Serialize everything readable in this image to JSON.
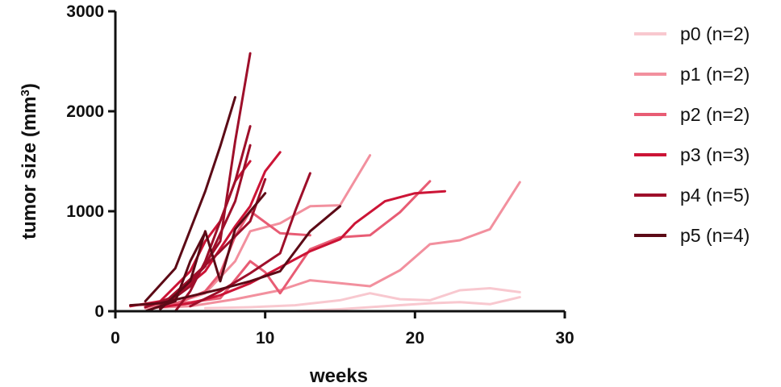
{
  "chart_data": {
    "type": "line",
    "xlabel": "weeks",
    "ylabel_main": "tumor size (mm",
    "ylabel_sup": "3",
    "ylabel_end": ")",
    "xlim": [
      0,
      30
    ],
    "ylim": [
      0,
      3000
    ],
    "xticks": [
      0,
      10,
      20,
      30
    ],
    "yticks": [
      0,
      1000,
      2000,
      3000
    ],
    "grid": false,
    "legend_position": "right",
    "groups": [
      {
        "name": "p0 (n=2)",
        "color": "#f8c8cf",
        "series": [
          {
            "x": [
              6,
              9,
              12,
              15,
              17,
              19,
              21,
              23,
              25,
              27
            ],
            "y": [
              30,
              40,
              60,
              110,
              180,
              120,
              110,
              210,
              230,
              190
            ]
          },
          {
            "x": [
              12,
              15,
              18,
              21,
              23,
              25,
              27
            ],
            "y": [
              0,
              20,
              50,
              80,
              90,
              70,
              140
            ]
          }
        ]
      },
      {
        "name": "p1 (n=2)",
        "color": "#f2909e",
        "series": [
          {
            "x": [
              2,
              4,
              6,
              8,
              9,
              11,
              13,
              15,
              17
            ],
            "y": [
              50,
              80,
              180,
              500,
              800,
              880,
              1050,
              1060,
              1560
            ]
          },
          {
            "x": [
              2,
              5,
              8,
              11,
              13,
              15,
              17,
              19,
              21,
              23,
              25,
              27
            ],
            "y": [
              30,
              50,
              120,
              210,
              310,
              280,
              250,
              410,
              670,
              710,
              820,
              1290
            ]
          }
        ]
      },
      {
        "name": "p2 (n=2)",
        "color": "#e85c74",
        "series": [
          {
            "x": [
              1,
              3,
              5,
              7,
              9,
              10,
              11,
              13,
              15,
              17,
              19,
              21
            ],
            "y": [
              60,
              70,
              90,
              130,
              500,
              390,
              180,
              620,
              740,
              760,
              990,
              1300
            ]
          },
          {
            "x": [
              2,
              4,
              6,
              7,
              8,
              9,
              11,
              13
            ],
            "y": [
              50,
              70,
              200,
              380,
              750,
              1000,
              780,
              760
            ]
          }
        ]
      },
      {
        "name": "p3 (n=3)",
        "color": "#cc1436",
        "series": [
          {
            "x": [
              2,
              4,
              6,
              8,
              9,
              10,
              11
            ],
            "y": [
              40,
              150,
              400,
              850,
              1050,
              1400,
              1590
            ]
          },
          {
            "x": [
              3,
              5,
              7,
              9,
              11,
              13,
              15,
              16,
              18,
              20,
              22
            ],
            "y": [
              40,
              80,
              160,
              280,
              440,
              600,
              720,
              880,
              1100,
              1180,
              1200
            ]
          },
          {
            "x": [
              1,
              3,
              5,
              6,
              7,
              8,
              9
            ],
            "y": [
              50,
              100,
              400,
              700,
              900,
              1300,
              1500
            ]
          }
        ]
      },
      {
        "name": "p4 (n=5)",
        "color": "#9e0f2a",
        "series": [
          {
            "x": [
              3,
              5,
              7,
              8,
              9
            ],
            "y": [
              30,
              250,
              700,
              1700,
              2580
            ]
          },
          {
            "x": [
              2,
              4,
              6,
              8,
              9
            ],
            "y": [
              40,
              150,
              450,
              1100,
              1660
            ]
          },
          {
            "x": [
              4,
              5,
              6,
              7,
              8,
              9
            ],
            "y": [
              0,
              200,
              500,
              900,
              1300,
              1850
            ]
          },
          {
            "x": [
              3,
              5,
              7,
              9,
              10
            ],
            "y": [
              50,
              320,
              600,
              900,
              1320
            ]
          },
          {
            "x": [
              5,
              7,
              9,
              11,
              12,
              13
            ],
            "y": [
              50,
              200,
              380,
              580,
              1000,
              1380
            ]
          }
        ]
      },
      {
        "name": "p5 (n=4)",
        "color": "#5c0a16",
        "series": [
          {
            "x": [
              2,
              4,
              6,
              7,
              8
            ],
            "y": [
              100,
              430,
              1200,
              1650,
              2140
            ]
          },
          {
            "x": [
              3,
              5,
              6,
              7,
              8,
              9,
              10
            ],
            "y": [
              20,
              300,
              800,
              300,
              820,
              1000,
              1180
            ]
          },
          {
            "x": [
              1,
              3,
              5,
              7,
              9,
              11,
              13,
              15
            ],
            "y": [
              60,
              80,
              150,
              220,
              300,
              400,
              800,
              1050
            ]
          },
          {
            "x": [
              2,
              4,
              5,
              6
            ],
            "y": [
              0,
              100,
              500,
              790
            ]
          }
        ]
      }
    ]
  }
}
